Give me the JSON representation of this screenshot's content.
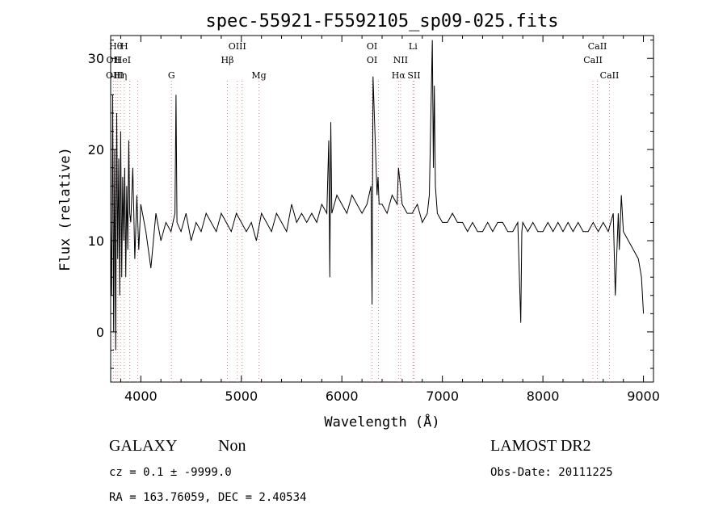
{
  "chart_data": {
    "type": "line",
    "title": "spec-55921-F5592105_sp09-025.fits",
    "xlabel": "Wavelength (Å)",
    "ylabel": "Flux (relative)",
    "xlim": [
      3700,
      9100
    ],
    "ylim": [
      -5.5,
      32.5
    ],
    "xticks": [
      4000,
      5000,
      6000,
      7000,
      8000,
      9000
    ],
    "yticks": [
      0,
      10,
      20,
      30
    ],
    "grid": false,
    "series": [
      {
        "name": "",
        "x": [
          3700,
          3710,
          3720,
          3730,
          3740,
          3750,
          3760,
          3770,
          3780,
          3790,
          3800,
          3810,
          3820,
          3830,
          3840,
          3850,
          3860,
          3870,
          3880,
          3890,
          3900,
          3920,
          3940,
          3960,
          3980,
          4000,
          4050,
          4100,
          4150,
          4200,
          4250,
          4300,
          4340,
          4350,
          4360,
          4400,
          4450,
          4500,
          4550,
          4600,
          4650,
          4700,
          4750,
          4800,
          4850,
          4900,
          4950,
          5000,
          5050,
          5100,
          5150,
          5200,
          5250,
          5300,
          5350,
          5400,
          5450,
          5500,
          5550,
          5600,
          5650,
          5700,
          5750,
          5800,
          5850,
          5870,
          5880,
          5890,
          5900,
          5950,
          6000,
          6050,
          6100,
          6150,
          6200,
          6250,
          6290,
          6300,
          6310,
          6350,
          6360,
          6370,
          6400,
          6450,
          6500,
          6550,
          6563,
          6600,
          6650,
          6700,
          6750,
          6800,
          6850,
          6870,
          6900,
          6910,
          6920,
          6930,
          6950,
          7000,
          7050,
          7100,
          7150,
          7200,
          7250,
          7300,
          7350,
          7400,
          7450,
          7500,
          7550,
          7600,
          7650,
          7700,
          7750,
          7780,
          7790,
          7800,
          7850,
          7900,
          7950,
          8000,
          8050,
          8100,
          8150,
          8200,
          8250,
          8300,
          8350,
          8400,
          8450,
          8500,
          8550,
          8600,
          8650,
          8700,
          8720,
          8750,
          8760,
          8780,
          8800,
          8850,
          8900,
          8950,
          8980,
          9000
        ],
        "y": [
          12,
          4,
          26,
          0,
          20,
          -2,
          24,
          8,
          19,
          4,
          22,
          6,
          17,
          10,
          18,
          6,
          16,
          9,
          21,
          13,
          12,
          18,
          8,
          15,
          9,
          14,
          11,
          7,
          13,
          10,
          12,
          11,
          13,
          26,
          12,
          11,
          13,
          10,
          12,
          11,
          13,
          12,
          11,
          13,
          12,
          11,
          13,
          12,
          11,
          12,
          10,
          13,
          12,
          11,
          13,
          12,
          11,
          14,
          12,
          13,
          12,
          13,
          12,
          14,
          13,
          21,
          6,
          23,
          13,
          15,
          14,
          13,
          15,
          14,
          13,
          14,
          16,
          3,
          28,
          15,
          17,
          14,
          14,
          13,
          15,
          14,
          18,
          14,
          13,
          13,
          14,
          12,
          13,
          15,
          32,
          18,
          27,
          16,
          13,
          12,
          12,
          13,
          12,
          12,
          11,
          12,
          11,
          11,
          12,
          11,
          12,
          12,
          11,
          11,
          12,
          1,
          11,
          12,
          11,
          12,
          11,
          11,
          12,
          11,
          12,
          11,
          12,
          11,
          12,
          11,
          11,
          12,
          11,
          12,
          11,
          13,
          4,
          13,
          9,
          15,
          11,
          10,
          9,
          8,
          6,
          2
        ]
      }
    ],
    "line_markers": [
      {
        "label": "Hθ",
        "x": 3750,
        "row": 1
      },
      {
        "label": "H",
        "x": 3835,
        "row": 1
      },
      {
        "label": "OII",
        "x": 3727,
        "row": 2
      },
      {
        "label": "HeI",
        "x": 3820,
        "row": 2
      },
      {
        "label": "OIII",
        "x": 3740,
        "row": 3
      },
      {
        "label": "Hη",
        "x": 3798,
        "row": 3
      },
      {
        "label": "G",
        "x": 4305,
        "row": 3
      },
      {
        "label": "OIII",
        "x": 4960,
        "row": 1
      },
      {
        "label": "Hβ",
        "x": 4861,
        "row": 2
      },
      {
        "label": "Mg",
        "x": 5175,
        "row": 3
      },
      {
        "label": "OI",
        "x": 6300,
        "row": 1
      },
      {
        "label": "OI",
        "x": 6300,
        "row": 2
      },
      {
        "label": "Li",
        "x": 6708,
        "row": 1
      },
      {
        "label": "NII",
        "x": 6584,
        "row": 2
      },
      {
        "label": "Hα",
        "x": 6563,
        "row": 3
      },
      {
        "label": "SII",
        "x": 6717,
        "row": 3
      },
      {
        "label": "CaII",
        "x": 8542,
        "row": 1
      },
      {
        "label": "CaII",
        "x": 8498,
        "row": 2
      },
      {
        "label": "CaII",
        "x": 8662,
        "row": 3
      }
    ],
    "line_positions": [
      3727,
      3750,
      3770,
      3798,
      3835,
      3889,
      3970,
      4305,
      4861,
      4960,
      5007,
      5175,
      6300,
      6364,
      6563,
      6584,
      6708,
      6717,
      8498,
      8542,
      8662
    ]
  },
  "info": {
    "class": "GALAXY",
    "subclass": "Non",
    "survey": "LAMOST DR2",
    "cz": "cz = 0.1 ± -9999.0",
    "obs_date": "Obs-Date: 20111225",
    "coords": "RA = 163.76059, DEC =   2.40534"
  }
}
